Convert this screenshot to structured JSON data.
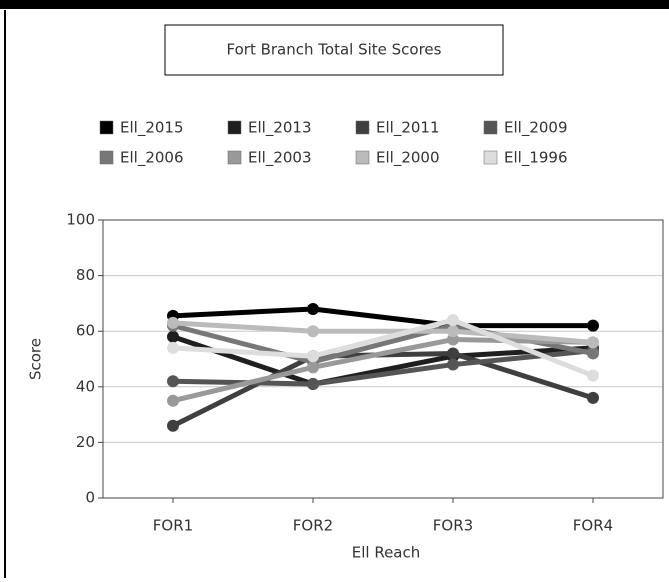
{
  "chart_data": {
    "type": "line",
    "title": "Fort Branch Total Site Scores",
    "x_label": "Ell Reach",
    "y_label": "Score",
    "categories": [
      "FOR1",
      "FOR2",
      "FOR3",
      "FOR4"
    ],
    "ylim": [
      0,
      100
    ],
    "yticks": [
      0,
      20,
      40,
      60,
      80,
      100
    ],
    "grid": true,
    "series": [
      {
        "name": "Ell_2015",
        "color": "#000000",
        "values": [
          65.5,
          68,
          62,
          62
        ]
      },
      {
        "name": "Ell_2013",
        "color": "#1f1f1f",
        "values": [
          58,
          41,
          51,
          54
        ]
      },
      {
        "name": "Ell_2011",
        "color": "#3f3f3f",
        "values": [
          26,
          51,
          52,
          36
        ]
      },
      {
        "name": "Ell_2009",
        "color": "#555555",
        "values": [
          42,
          41,
          48,
          53
        ]
      },
      {
        "name": "Ell_2006",
        "color": "#777777",
        "values": [
          62,
          49,
          62,
          52
        ]
      },
      {
        "name": "Ell_2003",
        "color": "#999999",
        "values": [
          35,
          47,
          57,
          56
        ]
      },
      {
        "name": "Ell_2000",
        "color": "#bbbbbb",
        "values": [
          63,
          60,
          60,
          56
        ]
      },
      {
        "name": "Ell_1996",
        "color": "#dddddd",
        "values": [
          54,
          51,
          64,
          44
        ]
      }
    ]
  }
}
